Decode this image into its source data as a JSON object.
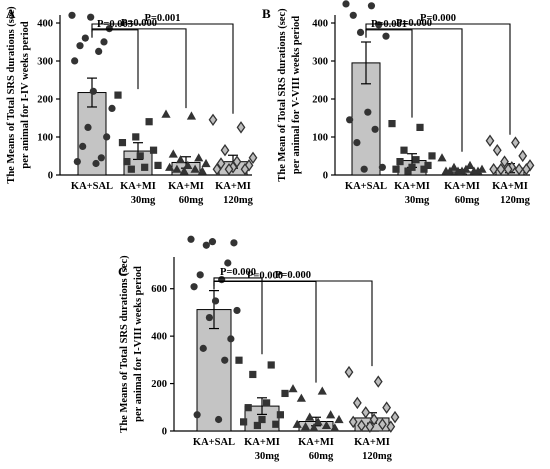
{
  "colors": {
    "bar_fill": "#c4c4c4",
    "bar_stroke": "#000000",
    "marker": "#333333"
  },
  "chart_data": [
    {
      "panel": "A",
      "type": "bar",
      "ylabel_lines": [
        "The Means of Total SRS durations (sec)",
        "per animal for I-IV weeks period"
      ],
      "ylim": [
        0,
        400
      ],
      "yticks": [
        0,
        100,
        200,
        300,
        400
      ],
      "categories": [
        {
          "line1": "KA+SAL",
          "line2": "",
          "marker": "circle",
          "mean": 217,
          "sem": 38,
          "points": [
            415,
            410,
            380,
            355,
            345,
            335,
            320,
            295,
            215,
            170,
            120,
            95,
            70,
            40,
            30,
            25
          ]
        },
        {
          "line1": "KA+MI",
          "line2": "30mg",
          "marker": "square",
          "mean": 63,
          "sem": 22,
          "points": [
            205,
            135,
            95,
            80,
            60,
            45,
            30,
            20,
            15,
            10
          ]
        },
        {
          "line1": "KA+MI",
          "line2": "60mg",
          "marker": "triangle",
          "mean": 33,
          "sem": 15,
          "points": [
            155,
            150,
            50,
            40,
            35,
            25,
            20,
            15,
            10,
            10,
            5,
            5
          ]
        },
        {
          "line1": "KA+MI",
          "line2": "120mg",
          "marker": "diamond",
          "mean": 35,
          "sem": 17,
          "points": [
            140,
            120,
            60,
            40,
            30,
            25,
            20,
            15,
            10,
            10,
            10
          ]
        }
      ],
      "comparisons": [
        {
          "to": 1,
          "label": "P=0.003"
        },
        {
          "to": 2,
          "label": "P=0.000"
        },
        {
          "to": 3,
          "label": "P=0.001"
        }
      ]
    },
    {
      "panel": "B",
      "type": "bar",
      "ylabel_lines": [
        "The Mean  of Total SRS durations (sec)",
        "per animal for V-VIII weeks period"
      ],
      "ylim": [
        0,
        400
      ],
      "yticks": [
        0,
        100,
        200,
        300,
        400
      ],
      "categories": [
        {
          "line1": "KA+SAL",
          "line2": "",
          "marker": "circle",
          "mean": 295,
          "sem": 55,
          "points": [
            445,
            440,
            415,
            390,
            370,
            360,
            160,
            140,
            115,
            80,
            15,
            10
          ]
        },
        {
          "line1": "KA+MI",
          "line2": "30mg",
          "marker": "square",
          "mean": 38,
          "sem": 18,
          "points": [
            130,
            120,
            60,
            45,
            35,
            30,
            20,
            15,
            10,
            10,
            5
          ]
        },
        {
          "line1": "KA+MI",
          "line2": "60mg",
          "marker": "triangle",
          "mean": 8,
          "sem": 6,
          "points": [
            40,
            20,
            15,
            10,
            10,
            5,
            5,
            5,
            5,
            5,
            5
          ]
        },
        {
          "line1": "KA+MI",
          "line2": "120mg",
          "marker": "diamond",
          "mean": 18,
          "sem": 12,
          "points": [
            85,
            80,
            60,
            45,
            30,
            20,
            15,
            10,
            10,
            10,
            10,
            10
          ]
        }
      ],
      "comparisons": [
        {
          "to": 1,
          "label": "P=0.001"
        },
        {
          "to": 2,
          "label": "P=0.000"
        },
        {
          "to": 3,
          "label": "P=0.000"
        }
      ]
    },
    {
      "panel": "C",
      "type": "bar",
      "ylabel_lines": [
        "The Means of Total SRS durations (sec)",
        "per animal for I-VIII weeks period"
      ],
      "ylim": [
        0,
        700
      ],
      "yticks": [
        0,
        200,
        400,
        600
      ],
      "categories": [
        {
          "line1": "KA+SAL",
          "line2": "",
          "marker": "circle",
          "mean": 512,
          "sem": 80,
          "points": [
            800,
            790,
            785,
            775,
            700,
            650,
            630,
            600,
            540,
            500,
            470,
            380,
            340,
            290,
            60,
            40
          ]
        },
        {
          "line1": "KA+MI",
          "line2": "30mg",
          "marker": "square",
          "mean": 105,
          "sem": 35,
          "points": [
            290,
            270,
            230,
            150,
            110,
            90,
            60,
            40,
            30,
            20,
            15
          ]
        },
        {
          "line1": "KA+MI",
          "line2": "60mg",
          "marker": "triangle",
          "mean": 40,
          "sem": 18,
          "points": [
            170,
            160,
            130,
            60,
            50,
            40,
            30,
            20,
            15,
            10,
            5,
            5
          ]
        },
        {
          "line1": "KA+MI",
          "line2": "120mg",
          "marker": "diamond",
          "mean": 55,
          "sem": 22,
          "points": [
            240,
            200,
            110,
            90,
            70,
            50,
            40,
            30,
            20,
            15,
            10,
            10
          ]
        }
      ],
      "comparisons": [
        {
          "to": 1,
          "label": "P=0.000"
        },
        {
          "to": 2,
          "label": "P=0.000"
        },
        {
          "to": 3,
          "label": "P=0.000"
        }
      ]
    }
  ]
}
